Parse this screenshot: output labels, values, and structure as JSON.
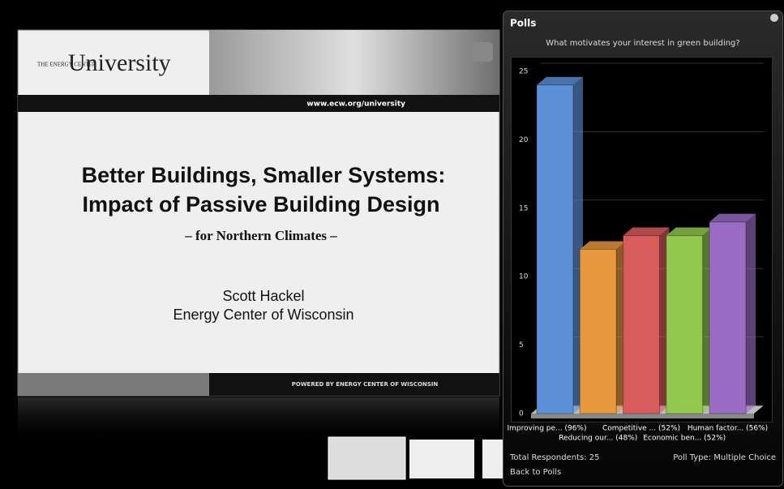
{
  "slide": {
    "logo_small": "THE ENERGY CENTER",
    "logo": "University",
    "url": "www.ecw.org/university",
    "title_1": "Better Buildings, Smaller Systems:",
    "title_2": "Impact of Passive Building Design",
    "subtitle": "– for Northern Climates –",
    "presenter": "Scott Hackel",
    "organization": "Energy Center of Wisconsin",
    "footer": "POWERED BY ENERGY CENTER OF WISCONSIN"
  },
  "poll": {
    "header": "Polls",
    "respondents": "Total Respondents: 25",
    "poll_type": "Poll Type: Multiple Choice",
    "back": "Back to Polls"
  },
  "chart_data": {
    "type": "bar3d",
    "title": "What motivates your interest in green building?",
    "categories": [
      "Improving pe... (96%)",
      "Reducing our... (48%)",
      "Competitive ... (52%)",
      "Economic ben... (52%)",
      "Human factor... (56%)"
    ],
    "values": [
      24,
      12,
      13,
      13,
      14
    ],
    "colors": [
      "#5b8fd6",
      "#e8993f",
      "#d85c5c",
      "#92c84e",
      "#9a6cc4"
    ],
    "ylim": [
      0,
      25
    ],
    "yticks": [
      0,
      5,
      10,
      15,
      20,
      25
    ],
    "grid": true
  }
}
